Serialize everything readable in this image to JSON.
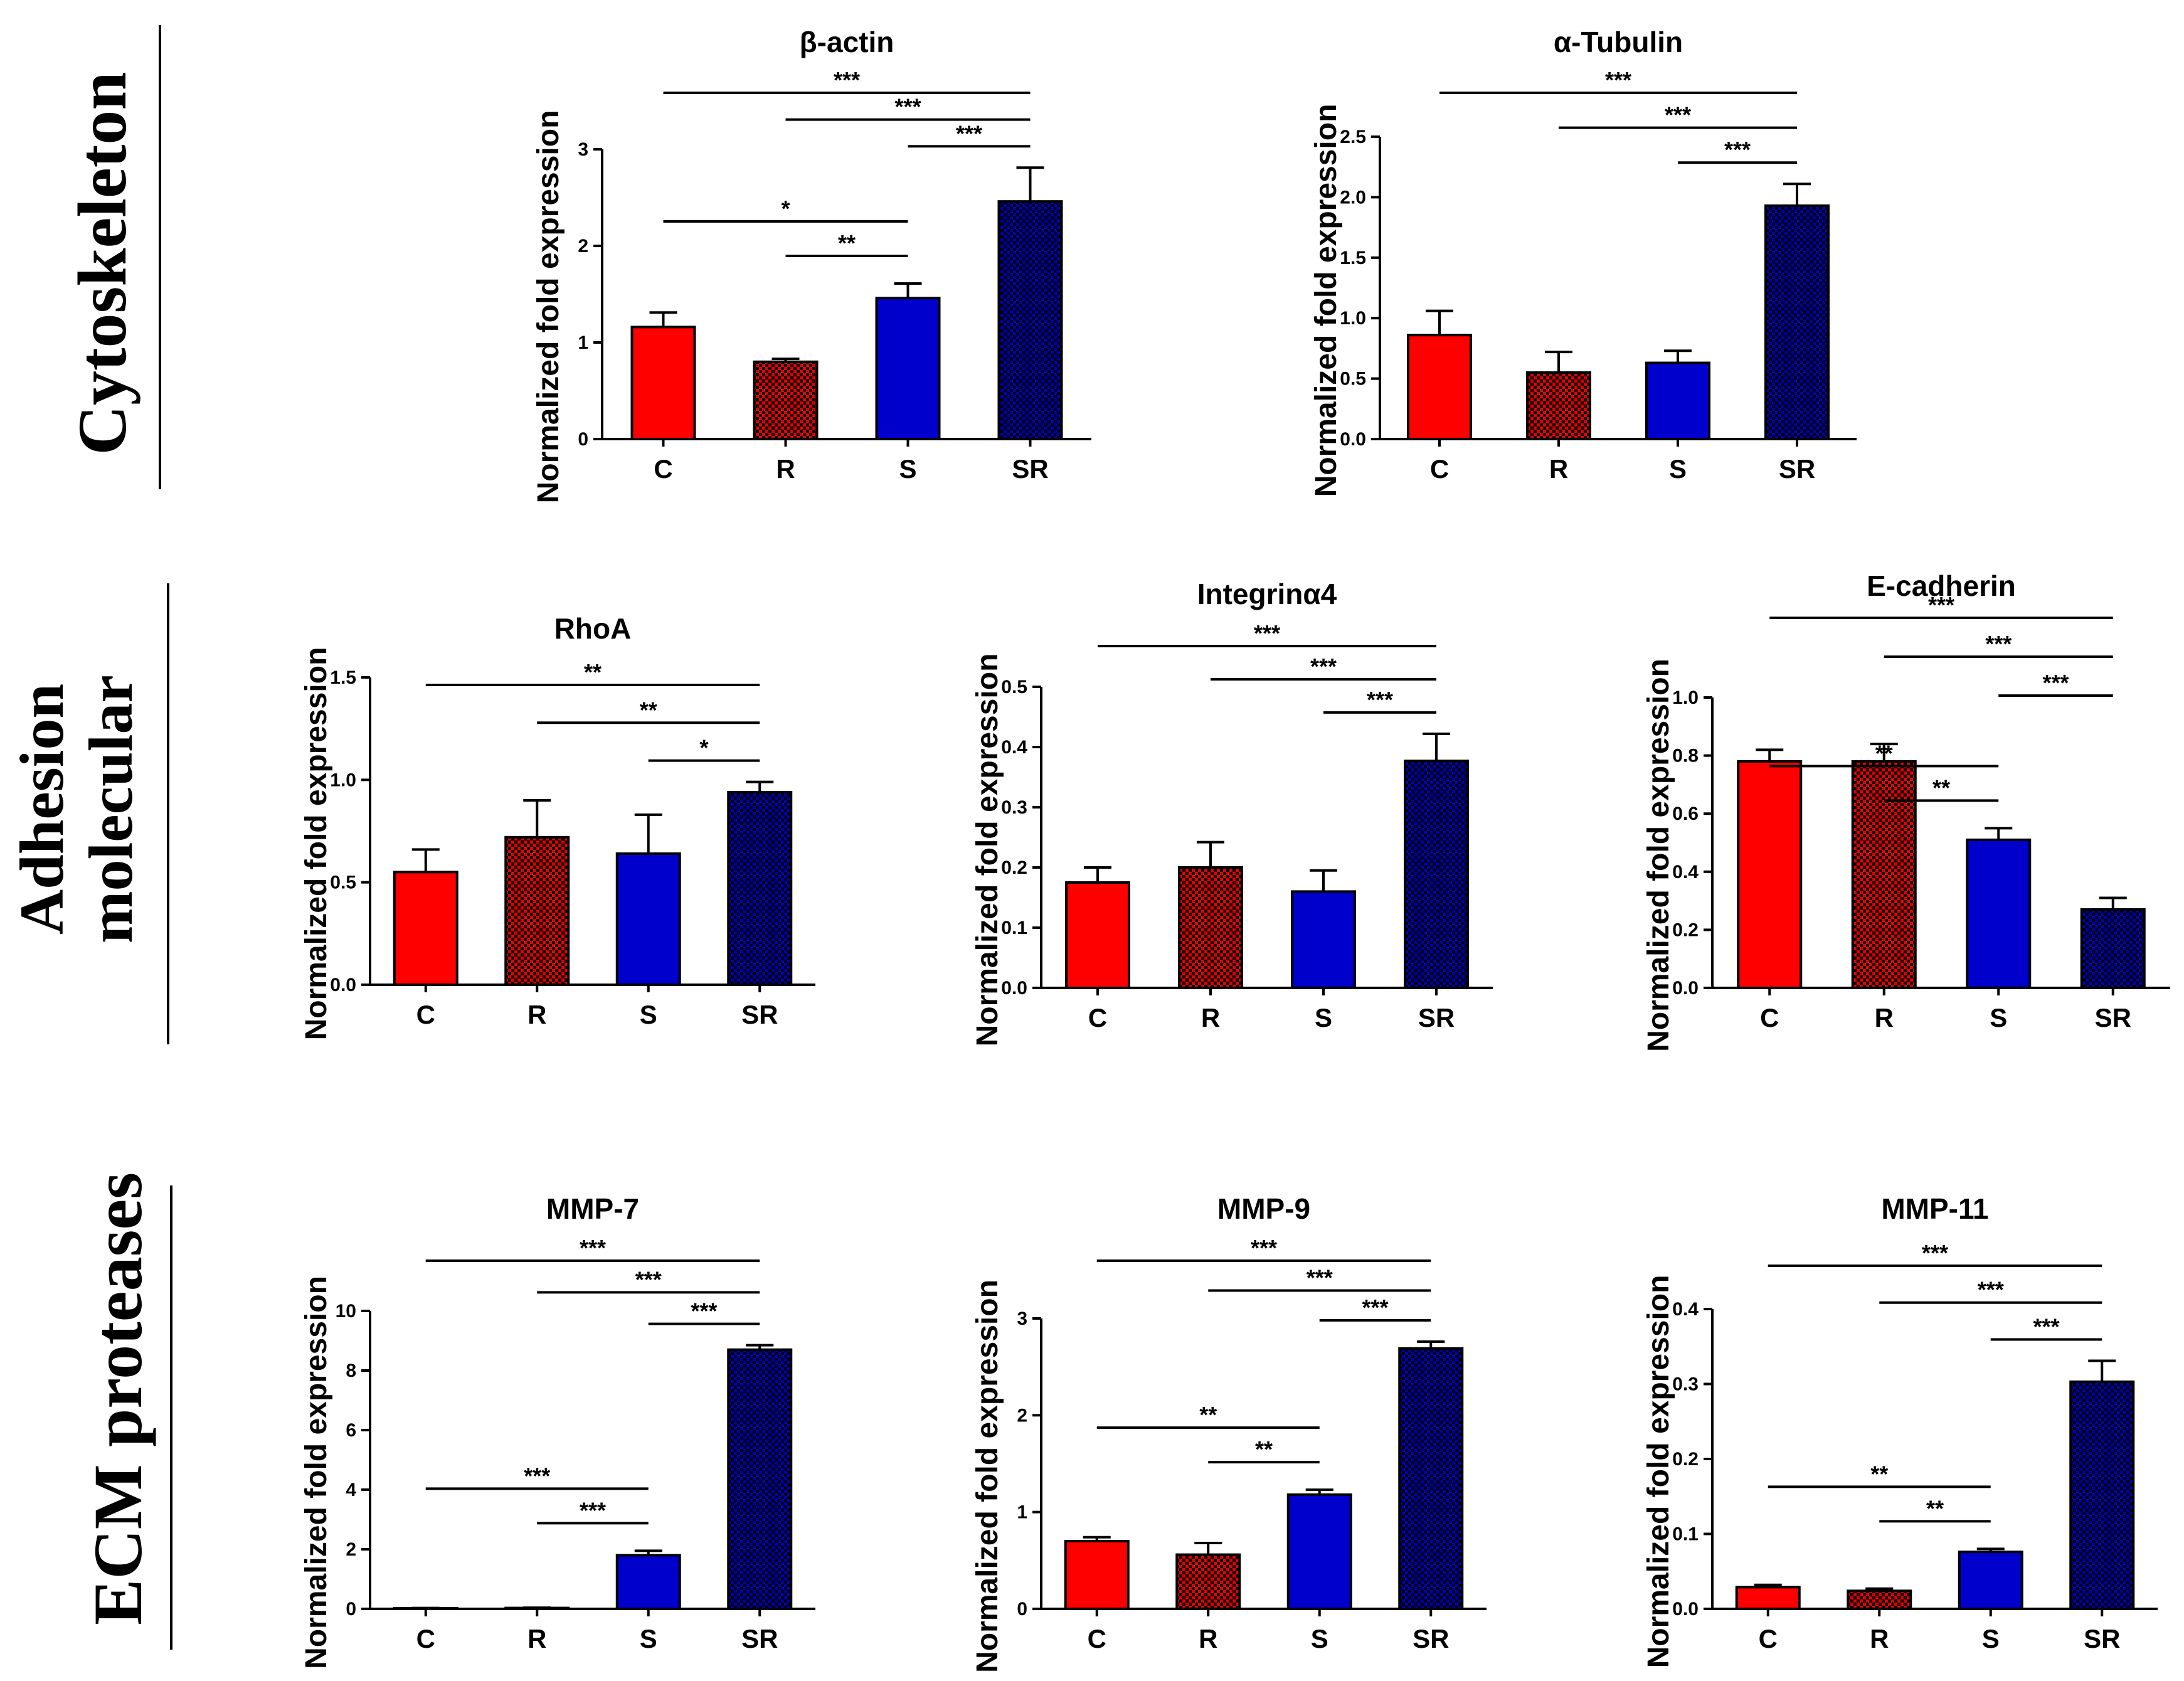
{
  "figure": {
    "sections": [
      {
        "id": "cytoskeleton",
        "label_lines": [
          "Cytoskeleton"
        ]
      },
      {
        "id": "adhesion",
        "label_lines": [
          "Adhesion",
          "molecular"
        ]
      },
      {
        "id": "ecm",
        "label_lines": [
          "ECM proteases"
        ]
      }
    ]
  },
  "colors": {
    "C": "#ff0000",
    "R": "#e60000",
    "S": "#0000cc",
    "SR": "#000099",
    "axis": "#000000"
  },
  "chart_data": [
    {
      "id": "beta-actin",
      "section": "cytoskeleton",
      "type": "bar",
      "title": "β-actin",
      "ylabel": "Normalized fold expression",
      "xlabel": "",
      "categories": [
        "C",
        "R",
        "S",
        "SR"
      ],
      "values": [
        1.16,
        0.8,
        1.46,
        2.46
      ],
      "errors": [
        0.15,
        0.03,
        0.15,
        0.35
      ],
      "ylim": [
        0,
        3
      ],
      "yticks": [
        "0",
        "1",
        "2",
        "3"
      ],
      "ytick_values": [
        0,
        1,
        2,
        3
      ],
      "significance": [
        {
          "from": "C",
          "to": "SR",
          "label": "***"
        },
        {
          "from": "R",
          "to": "SR",
          "label": "***"
        },
        {
          "from": "S",
          "to": "SR",
          "label": "***"
        },
        {
          "from": "C",
          "to": "S",
          "label": "*"
        },
        {
          "from": "R",
          "to": "S",
          "label": "**"
        }
      ]
    },
    {
      "id": "alpha-tubulin",
      "section": "cytoskeleton",
      "type": "bar",
      "title": "α-Tubulin",
      "ylabel": "Normalized fold expression",
      "xlabel": "",
      "categories": [
        "C",
        "R",
        "S",
        "SR"
      ],
      "values": [
        0.86,
        0.55,
        0.63,
        1.93
      ],
      "errors": [
        0.2,
        0.17,
        0.1,
        0.18
      ],
      "ylim": [
        0,
        2.5
      ],
      "yticks": [
        "0.0",
        "0.5",
        "1.0",
        "1.5",
        "2.0",
        "2.5"
      ],
      "ytick_values": [
        0,
        0.5,
        1,
        1.5,
        2,
        2.5
      ],
      "significance": [
        {
          "from": "C",
          "to": "SR",
          "label": "***"
        },
        {
          "from": "R",
          "to": "SR",
          "label": "***"
        },
        {
          "from": "S",
          "to": "SR",
          "label": "***"
        }
      ]
    },
    {
      "id": "rhoa",
      "section": "adhesion",
      "type": "bar",
      "title": "RhoA",
      "ylabel": "Normalized fold expression",
      "xlabel": "",
      "categories": [
        "C",
        "R",
        "S",
        "SR"
      ],
      "values": [
        0.55,
        0.72,
        0.64,
        0.94
      ],
      "errors": [
        0.11,
        0.18,
        0.19,
        0.05
      ],
      "ylim": [
        0,
        1.5
      ],
      "yticks": [
        "0.0",
        "0.5",
        "1.0",
        "1.5"
      ],
      "ytick_values": [
        0,
        0.5,
        1,
        1.5
      ],
      "significance": [
        {
          "from": "C",
          "to": "SR",
          "label": "**"
        },
        {
          "from": "R",
          "to": "SR",
          "label": "**"
        },
        {
          "from": "S",
          "to": "SR",
          "label": "*"
        }
      ]
    },
    {
      "id": "integrin-a4",
      "section": "adhesion",
      "type": "bar",
      "title": "Integrinα4",
      "ylabel": "Normalized fold expression",
      "xlabel": "",
      "categories": [
        "C",
        "R",
        "S",
        "SR"
      ],
      "values": [
        0.175,
        0.2,
        0.16,
        0.377
      ],
      "errors": [
        0.025,
        0.042,
        0.035,
        0.045
      ],
      "ylim": [
        0,
        0.5
      ],
      "yticks": [
        "0.0",
        "0.1",
        "0.2",
        "0.3",
        "0.4",
        "0.5"
      ],
      "ytick_values": [
        0,
        0.1,
        0.2,
        0.3,
        0.4,
        0.5
      ],
      "significance": [
        {
          "from": "C",
          "to": "SR",
          "label": "***"
        },
        {
          "from": "R",
          "to": "SR",
          "label": "***"
        },
        {
          "from": "S",
          "to": "SR",
          "label": "***"
        }
      ]
    },
    {
      "id": "e-cadherin",
      "section": "adhesion",
      "type": "bar",
      "title": "E-cadherin",
      "ylabel": "Normalized fold expression",
      "xlabel": "",
      "categories": [
        "C",
        "R",
        "S",
        "SR"
      ],
      "values": [
        0.78,
        0.78,
        0.51,
        0.27
      ],
      "errors": [
        0.04,
        0.06,
        0.04,
        0.04
      ],
      "ylim": [
        0,
        1.0
      ],
      "yticks": [
        "0.0",
        "0.2",
        "0.4",
        "0.6",
        "0.8",
        "1.0"
      ],
      "ytick_values": [
        0,
        0.2,
        0.4,
        0.6,
        0.8,
        1.0
      ],
      "significance": [
        {
          "from": "C",
          "to": "SR",
          "label": "***"
        },
        {
          "from": "R",
          "to": "SR",
          "label": "***"
        },
        {
          "from": "S",
          "to": "SR",
          "label": "***"
        },
        {
          "from": "C",
          "to": "S",
          "label": "**"
        },
        {
          "from": "R",
          "to": "S",
          "label": "**"
        }
      ]
    },
    {
      "id": "mmp-7",
      "section": "ecm",
      "type": "bar",
      "title": "MMP-7",
      "ylabel": "Normalized fold expression",
      "xlabel": "",
      "categories": [
        "C",
        "R",
        "S",
        "SR"
      ],
      "values": [
        0.02,
        0.03,
        1.8,
        8.7
      ],
      "errors": [
        0.01,
        0.01,
        0.15,
        0.15
      ],
      "ylim": [
        0,
        10
      ],
      "yticks": [
        "0",
        "2",
        "4",
        "6",
        "8",
        "10"
      ],
      "ytick_values": [
        0,
        2,
        4,
        6,
        8,
        10
      ],
      "significance": [
        {
          "from": "C",
          "to": "SR",
          "label": "***"
        },
        {
          "from": "R",
          "to": "SR",
          "label": "***"
        },
        {
          "from": "S",
          "to": "SR",
          "label": "***"
        },
        {
          "from": "C",
          "to": "S",
          "label": "***"
        },
        {
          "from": "R",
          "to": "S",
          "label": "***"
        }
      ]
    },
    {
      "id": "mmp-9",
      "section": "ecm",
      "type": "bar",
      "title": "MMP-9",
      "ylabel": "Normalized fold expression",
      "xlabel": "",
      "categories": [
        "C",
        "R",
        "S",
        "SR"
      ],
      "values": [
        0.7,
        0.56,
        1.18,
        2.69
      ],
      "errors": [
        0.04,
        0.12,
        0.05,
        0.07
      ],
      "ylim": [
        0,
        3
      ],
      "yticks": [
        "0",
        "1",
        "2",
        "3"
      ],
      "ytick_values": [
        0,
        1,
        2,
        3
      ],
      "significance": [
        {
          "from": "C",
          "to": "SR",
          "label": "***"
        },
        {
          "from": "R",
          "to": "SR",
          "label": "***"
        },
        {
          "from": "S",
          "to": "SR",
          "label": "***"
        },
        {
          "from": "C",
          "to": "S",
          "label": "**"
        },
        {
          "from": "R",
          "to": "S",
          "label": "**"
        }
      ]
    },
    {
      "id": "mmp-11",
      "section": "ecm",
      "type": "bar",
      "title": "MMP-11",
      "ylabel": "Normalized fold expression",
      "xlabel": "",
      "categories": [
        "C",
        "R",
        "S",
        "SR"
      ],
      "values": [
        0.029,
        0.024,
        0.076,
        0.303
      ],
      "errors": [
        0.003,
        0.003,
        0.004,
        0.028
      ],
      "ylim": [
        0,
        0.4
      ],
      "yticks": [
        "0.0",
        "0.1",
        "0.2",
        "0.3",
        "0.4"
      ],
      "ytick_values": [
        0,
        0.1,
        0.2,
        0.3,
        0.4
      ],
      "significance": [
        {
          "from": "C",
          "to": "SR",
          "label": "***"
        },
        {
          "from": "R",
          "to": "SR",
          "label": "***"
        },
        {
          "from": "S",
          "to": "SR",
          "label": "***"
        },
        {
          "from": "C",
          "to": "S",
          "label": "**"
        },
        {
          "from": "R",
          "to": "S",
          "label": "**"
        }
      ]
    }
  ]
}
